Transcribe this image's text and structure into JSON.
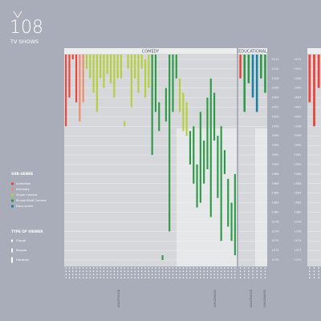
{
  "chart_data": {
    "type": "range",
    "title": "108",
    "subtitle": "TV SHOWS",
    "ylim": [
      1969,
      2013
    ],
    "yticks": [
      1970,
      1972,
      1974,
      1976,
      1978,
      1980,
      1982,
      1984,
      1986,
      1988,
      1990,
      1992,
      1994,
      1996,
      1998,
      2000,
      2002,
      2004,
      2006,
      2008,
      2010,
      2012
    ],
    "grid": true,
    "legend": {
      "title": "SUB-GENRE",
      "items": [
        {
          "name": "Animation",
          "color": "#e8453c"
        },
        {
          "name": "Dramedy",
          "color": "#ef8a6a"
        },
        {
          "name": "Single Camera",
          "color": "#b5cf3a"
        },
        {
          "name": "Sitcom/Multi Camera",
          "color": "#2e9a48"
        },
        {
          "name": "Docu-series",
          "color": "#1a7fa0"
        }
      ]
    },
    "viewer_legend": {
      "title": "TYPE OF VIEWER",
      "items": [
        "Casual",
        "Regular",
        "Hardcore"
      ]
    },
    "panels": [
      {
        "label": "COMEDY",
        "zones": [
          "ADULTHOOD",
          "CHILDHOOD"
        ],
        "bars": [
          {
            "start": 1998,
            "end": 2013,
            "color": "#e8453c"
          },
          {
            "start": 2004,
            "end": 2013,
            "color": "#e8453c"
          },
          {
            "start": 2012,
            "end": 2013,
            "color": "#e8453c"
          },
          {
            "start": 2003,
            "end": 2013,
            "color": "#e8453c"
          },
          {
            "start": 1999,
            "end": 2013,
            "color": "#ef8a6a"
          },
          {
            "start": 2003,
            "end": 2013,
            "color": "#ef8a6a"
          },
          {
            "start": 2010,
            "end": 2013,
            "color": "#b5cf3a"
          },
          {
            "start": 2008,
            "end": 2013,
            "color": "#b5cf3a"
          },
          {
            "start": 2005,
            "end": 2013,
            "color": "#b5cf3a"
          },
          {
            "start": 2001,
            "end": 2013,
            "color": "#b5cf3a"
          },
          {
            "start": 2008,
            "end": 2013,
            "color": "#b5cf3a"
          },
          {
            "start": 2006,
            "end": 2013,
            "color": "#b5cf3a"
          },
          {
            "start": 2009,
            "end": 2013,
            "color": "#b5cf3a"
          },
          {
            "start": 2007,
            "end": 2013,
            "color": "#b5cf3a"
          },
          {
            "start": 2004,
            "end": 2013,
            "color": "#b5cf3a"
          },
          {
            "start": 2008,
            "end": 2013,
            "color": "#b5cf3a"
          },
          {
            "start": 2008,
            "end": 2013,
            "color": "#b5cf3a"
          },
          {
            "start": 1998,
            "end": 1999,
            "color": "#b5cf3a"
          },
          {
            "start": 2010,
            "end": 2013,
            "color": "#b5cf3a"
          },
          {
            "start": 2002,
            "end": 2013,
            "color": "#b5cf3a"
          },
          {
            "start": 2008,
            "end": 2013,
            "color": "#b5cf3a"
          },
          {
            "start": 2005,
            "end": 2013,
            "color": "#b5cf3a"
          },
          {
            "start": 2010,
            "end": 2013,
            "color": "#b5cf3a"
          },
          {
            "start": 2004,
            "end": 2012,
            "color": "#b5cf3a"
          },
          {
            "start": 2006,
            "end": 2013,
            "color": "#b5cf3a"
          },
          {
            "start": 1992,
            "end": 2013,
            "color": "#2e9a48"
          },
          {
            "start": 2001,
            "end": 2013,
            "color": "#2e9a48"
          },
          {
            "start": 1997,
            "end": 2003,
            "color": "#2e9a48"
          },
          {
            "start": 1970,
            "end": 1971,
            "color": "#2e9a48"
          },
          {
            "start": 1999,
            "end": 2006,
            "color": "#2e9a48"
          },
          {
            "start": 1976,
            "end": 2013,
            "color": "#2e9a48"
          },
          {
            "start": 2001,
            "end": 2013,
            "color": "#2e9a48"
          },
          {
            "start": 2008,
            "end": 2013,
            "color": "#2e9a48"
          },
          {
            "start": 2001,
            "end": 2008,
            "color": "#b5cf3a"
          },
          {
            "start": 1997,
            "end": 2005,
            "color": "#b5cf3a"
          },
          {
            "start": 1996,
            "end": 2003,
            "color": "#b5cf3a"
          },
          {
            "start": 1990,
            "end": 1997,
            "color": "#2e9a48"
          },
          {
            "start": 1986,
            "end": 1998,
            "color": "#2e9a48"
          },
          {
            "start": 1981,
            "end": 1990,
            "color": "#2e9a48"
          },
          {
            "start": 1982,
            "end": 2001,
            "color": "#2e9a48"
          },
          {
            "start": 1986,
            "end": 1995,
            "color": "#2e9a48"
          },
          {
            "start": 1989,
            "end": 2004,
            "color": "#2e9a48"
          },
          {
            "start": 1979,
            "end": 2008,
            "color": "#2e9a48"
          },
          {
            "start": 1995,
            "end": 2005,
            "color": "#2e9a48"
          },
          {
            "start": 1983,
            "end": 1996,
            "color": "#2e9a48"
          },
          {
            "start": 1974,
            "end": 1998,
            "color": "#2e9a48"
          },
          {
            "start": 1988,
            "end": 1993,
            "color": "#2e9a48"
          },
          {
            "start": 1977,
            "end": 1987,
            "color": "#2e9a48"
          },
          {
            "start": 1974,
            "end": 1982,
            "color": "#2e9a48"
          },
          {
            "start": 1971,
            "end": 1988,
            "color": "#2e9a48"
          }
        ]
      },
      {
        "label": "EDUCATIONAL",
        "zones": [
          "ADULTHOOD",
          "CHILDHOOD"
        ],
        "bars": [
          {
            "start": 2008,
            "end": 2013,
            "color": "#e8453c"
          },
          {
            "start": 2001,
            "end": 2013,
            "color": "#2e9a48"
          },
          {
            "start": 2007,
            "end": 2013,
            "color": "#2e9a48"
          },
          {
            "start": 2004,
            "end": 2013,
            "color": "#1a7fa0"
          },
          {
            "start": 2001,
            "end": 2013,
            "color": "#1a7fa0"
          },
          {
            "start": 2008,
            "end": 2013,
            "color": "#2e9a48"
          },
          {
            "start": 2005,
            "end": 2013,
            "color": "#2e9a48"
          }
        ]
      },
      {
        "bars": [
          {
            "start": 2003,
            "end": 2013,
            "color": "#e8453c"
          },
          {
            "start": 1998,
            "end": 2013,
            "color": "#e8453c"
          },
          {
            "start": 2006,
            "end": 2013,
            "color": "#e8453c"
          }
        ]
      }
    ]
  }
}
